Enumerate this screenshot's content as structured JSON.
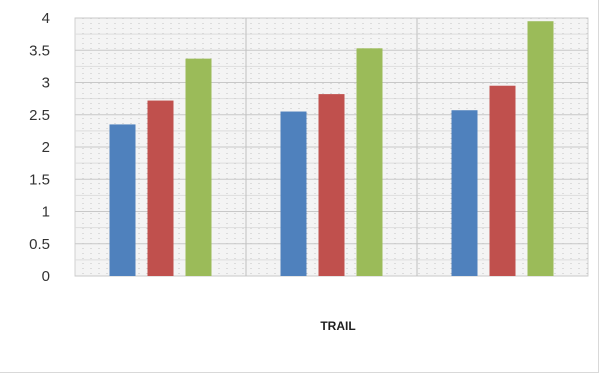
{
  "chart_data": {
    "type": "bar",
    "categories": [
      "",
      "",
      ""
    ],
    "series": [
      {
        "color": "#4f81bd",
        "values": [
          2.35,
          2.55,
          2.57
        ]
      },
      {
        "color": "#c0504d",
        "values": [
          2.72,
          2.82,
          2.95
        ]
      },
      {
        "color": "#9bbb59",
        "values": [
          3.37,
          3.53,
          3.95
        ]
      }
    ],
    "title": "",
    "xlabel": "TRAIL",
    "ylabel": "",
    "ylim": [
      0,
      4
    ],
    "yticks": [
      "0",
      "0.5",
      "1",
      "1.5",
      "2",
      "2.5",
      "3",
      "3.5",
      "4"
    ],
    "grid": true,
    "legend": "none"
  }
}
